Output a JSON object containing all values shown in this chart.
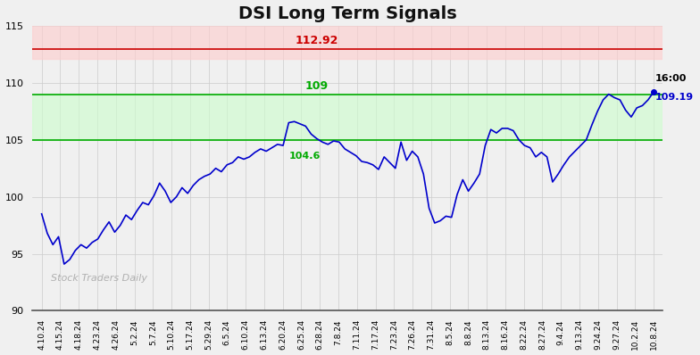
{
  "title": "DSI Long Term Signals",
  "watermark": "Stock Traders Daily",
  "red_line": 112.92,
  "red_line_label": "112.92",
  "green_line_upper": 109.0,
  "green_line_upper_label": "109",
  "green_line_lower": 104.97,
  "annotation_peak_label": "104.6",
  "end_label_time": "16:00",
  "end_label_value": "109.19",
  "ylim": [
    90,
    115
  ],
  "yticks": [
    90,
    95,
    100,
    105,
    110,
    115
  ],
  "line_color": "#0000cc",
  "red_color": "#cc0000",
  "red_fill_color": "#ffcccc",
  "green_color": "#00aa00",
  "green_fill_color": "#ccffcc",
  "background_color": "#f0f0f0",
  "grid_color": "#cccccc",
  "x_labels": [
    "4.10.24",
    "4.15.24",
    "4.18.24",
    "4.23.24",
    "4.26.24",
    "5.2.24",
    "5.7.24",
    "5.10.24",
    "5.17.24",
    "5.29.24",
    "6.5.24",
    "6.10.24",
    "6.13.24",
    "6.20.24",
    "6.25.24",
    "6.28.24",
    "7.8.24",
    "7.11.24",
    "7.17.24",
    "7.23.24",
    "7.26.24",
    "7.31.24",
    "8.5.24",
    "8.8.24",
    "8.13.24",
    "8.16.24",
    "8.22.24",
    "8.27.24",
    "9.4.24",
    "9.13.24",
    "9.24.24",
    "9.27.24",
    "10.2.24",
    "10.8.24"
  ],
  "y_values": [
    98.5,
    96.8,
    95.8,
    96.5,
    94.1,
    94.5,
    95.3,
    95.8,
    95.5,
    96.0,
    96.3,
    97.1,
    97.8,
    96.9,
    97.5,
    98.4,
    98.0,
    98.8,
    99.5,
    99.3,
    100.1,
    101.2,
    100.5,
    99.5,
    100.0,
    100.8,
    100.3,
    101.0,
    101.5,
    101.8,
    102.0,
    102.5,
    102.2,
    102.8,
    103.0,
    103.5,
    103.3,
    103.5,
    103.9,
    104.2,
    104.0,
    104.3,
    104.6,
    104.5,
    106.5,
    106.6,
    106.4,
    106.2,
    105.5,
    105.1,
    104.8,
    104.6,
    104.9,
    104.8,
    104.2,
    103.9,
    103.6,
    103.1,
    103.0,
    102.8,
    102.4,
    103.5,
    103.0,
    102.5,
    104.8,
    103.2,
    104.0,
    103.5,
    102.0,
    99.0,
    97.7,
    97.9,
    98.3,
    98.2,
    100.2,
    101.5,
    100.5,
    101.2,
    102.0,
    104.5,
    105.9,
    105.6,
    106.0,
    106.0,
    105.8,
    105.0,
    104.5,
    104.3,
    103.5,
    103.9,
    103.5,
    101.3,
    102.0,
    102.8,
    103.5,
    104.0,
    104.5,
    105.0,
    106.3,
    107.5,
    108.5,
    109.0,
    108.7,
    108.5,
    107.6,
    107.0,
    107.8,
    108.0,
    108.5,
    109.19
  ]
}
